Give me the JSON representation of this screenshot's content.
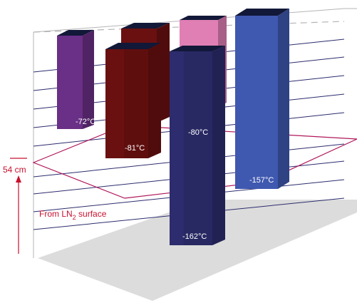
{
  "chart_data": {
    "type": "bar",
    "subtype": "3d-floating-bars",
    "unit": "°C",
    "bars": [
      {
        "value_label": "-72°C",
        "value": -72,
        "color": "#6a2f86",
        "depth": "back"
      },
      {
        "value_label": "",
        "value": null,
        "color": "#6a1010",
        "depth": "back"
      },
      {
        "value_label": "-81°C",
        "value": -81,
        "color": "#6a1010",
        "depth": "front"
      },
      {
        "value_label": "",
        "value": null,
        "color": "#e07fb4",
        "depth": "back"
      },
      {
        "value_label": "-80°C",
        "value": -80,
        "color": "#2c2c6e",
        "depth": "front"
      },
      {
        "value_label": "-162°C",
        "value": -162,
        "color": "#2c2c6e",
        "depth": "front"
      },
      {
        "value_label": "-157°C",
        "value": -157,
        "color": "#3f58b0",
        "depth": "back"
      }
    ],
    "reference_plane": {
      "color": "#b0175a"
    },
    "dimension": {
      "value_label": "54 cm",
      "value": 54,
      "unit": "cm",
      "note": {
        "prefix": "From LN",
        "subscript": "2",
        "suffix": " surface"
      },
      "color": "#c8102e"
    },
    "floor_color": "#dcdcdc"
  }
}
